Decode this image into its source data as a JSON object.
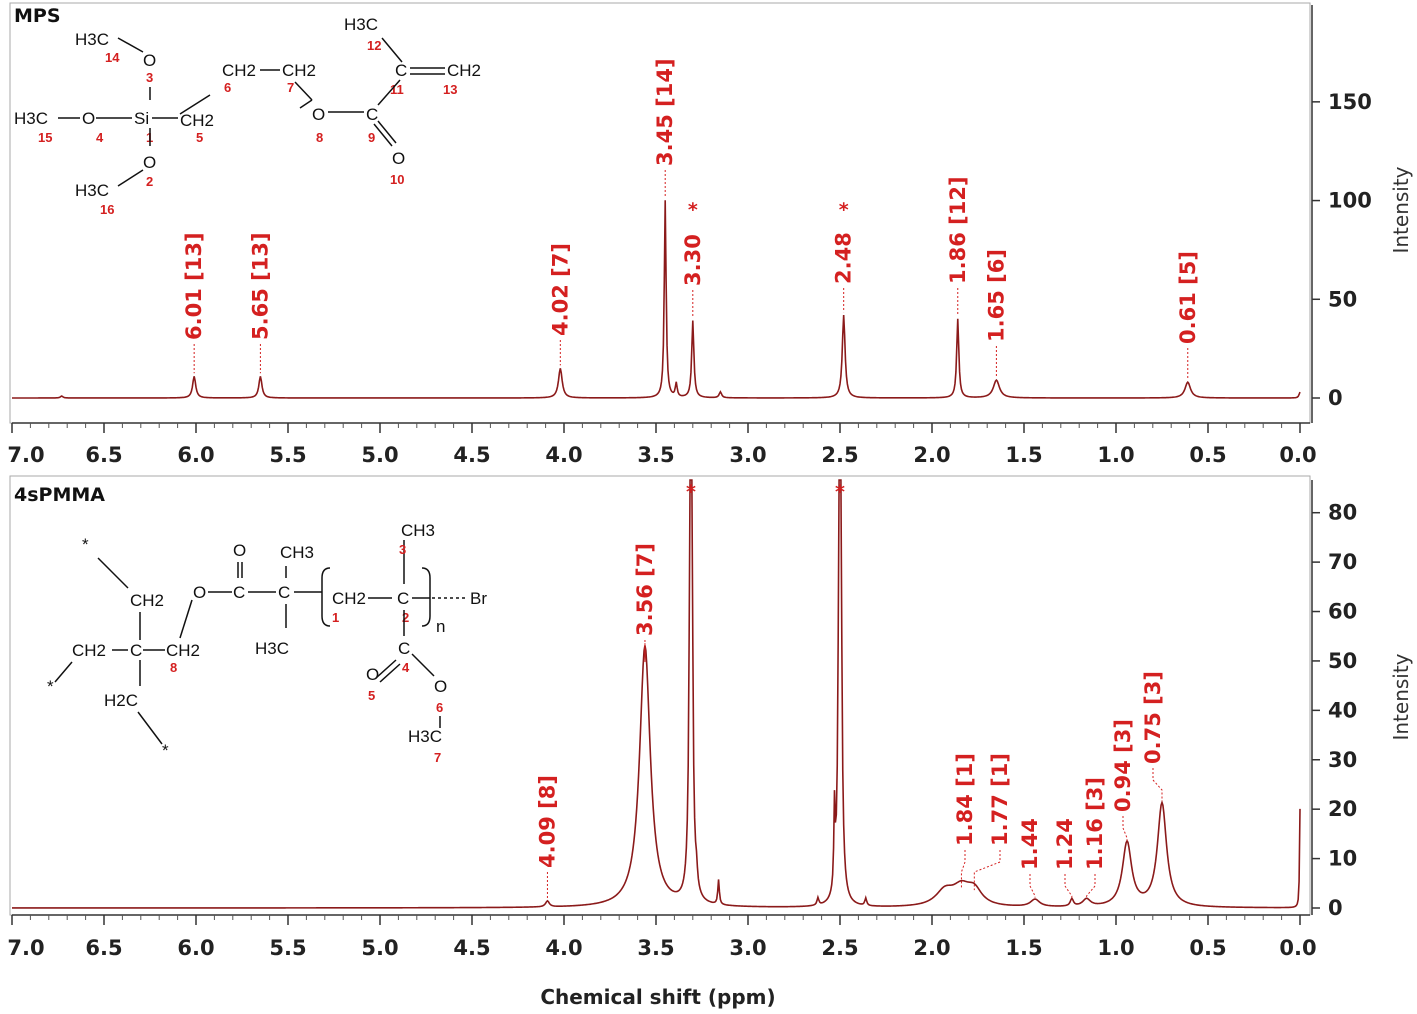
{
  "chart_data": [
    {
      "type": "line",
      "title": "MPS",
      "xlabel": "",
      "ylabel": "Intensity",
      "xlim": [
        7.0,
        0.0
      ],
      "ylim": [
        -5,
        195
      ],
      "x_ticks": [
        "7.0",
        "6.5",
        "6.0",
        "5.5",
        "5.0",
        "4.5",
        "4.0",
        "3.5",
        "3.0",
        "2.5",
        "2.0",
        "1.5",
        "1.0",
        "0.5",
        "0.0"
      ],
      "y_ticks": [
        0,
        50,
        100,
        150
      ],
      "peaks": [
        {
          "x": 6.01,
          "h": 11,
          "w": 0.01,
          "label": "6.01 [13]"
        },
        {
          "x": 5.65,
          "h": 11,
          "w": 0.01,
          "label": "5.65 [13]"
        },
        {
          "x": 4.02,
          "h": 15,
          "w": 0.012,
          "label": "4.02 [7]"
        },
        {
          "x": 3.45,
          "h": 100,
          "w": 0.006,
          "label": "3.45 [14]"
        },
        {
          "x": 3.3,
          "h": 39,
          "w": 0.007,
          "label": "3.30",
          "star": true
        },
        {
          "x": 2.48,
          "h": 42,
          "w": 0.009,
          "label": "2.48",
          "star": true
        },
        {
          "x": 1.86,
          "h": 40,
          "w": 0.007,
          "label": "1.86 [12]"
        },
        {
          "x": 1.65,
          "h": 9,
          "w": 0.02,
          "label": "1.65 [6]"
        },
        {
          "x": 0.61,
          "h": 8,
          "w": 0.018,
          "label": "0.61 [5]"
        },
        {
          "x": 3.39,
          "h": 7,
          "w": 0.006
        },
        {
          "x": 3.15,
          "h": 3,
          "w": 0.008
        },
        {
          "x": 0.0,
          "h": 3,
          "w": 0.006
        },
        {
          "x": 6.73,
          "h": 1,
          "w": 0.008
        }
      ]
    },
    {
      "type": "line",
      "title": "4sPMMA",
      "xlabel": "Chemical shift (ppm)",
      "ylabel": "Intensity",
      "xlim": [
        7.0,
        0.0
      ],
      "ylim": [
        -1,
        85
      ],
      "x_ticks": [
        "7.0",
        "6.5",
        "6.0",
        "5.5",
        "5.0",
        "4.5",
        "4.0",
        "3.5",
        "3.0",
        "2.5",
        "2.0",
        "1.5",
        "1.0",
        "0.5",
        "0.0"
      ],
      "y_ticks": [
        0,
        10,
        20,
        30,
        40,
        50,
        60,
        70,
        80
      ],
      "peaks": [
        {
          "x": 4.09,
          "h": 1.2,
          "w": 0.012,
          "label": "4.09 [8]"
        },
        {
          "x": 3.56,
          "h": 53,
          "w": 0.035,
          "label": "3.56 [7]"
        },
        {
          "x": 3.31,
          "h": 200,
          "w": 0.006,
          "label": "",
          "star": true
        },
        {
          "x": 2.5,
          "h": 200,
          "w": 0.006,
          "label": "",
          "star": true
        },
        {
          "x": 1.84,
          "h": 3.5,
          "w": 0.06,
          "label": "1.84 [1]"
        },
        {
          "x": 1.77,
          "h": 3.0,
          "w": 0.05,
          "label": "1.77 [1]"
        },
        {
          "x": 1.44,
          "h": 1.5,
          "w": 0.03,
          "label": "1.44"
        },
        {
          "x": 1.24,
          "h": 1.5,
          "w": 0.01,
          "label": "1.24"
        },
        {
          "x": 1.16,
          "h": 1.5,
          "w": 0.025,
          "label": "1.16 [3]"
        },
        {
          "x": 0.94,
          "h": 13,
          "w": 0.03,
          "label": "0.94 [3]"
        },
        {
          "x": 0.75,
          "h": 21,
          "w": 0.03,
          "label": "0.75 [3]"
        },
        {
          "x": 1.93,
          "h": 3.0,
          "w": 0.06
        },
        {
          "x": 2.53,
          "h": 16,
          "w": 0.004
        },
        {
          "x": 3.16,
          "h": 5,
          "w": 0.005
        },
        {
          "x": 3.28,
          "h": 3,
          "w": 0.006
        },
        {
          "x": 2.62,
          "h": 1.5,
          "w": 0.006
        },
        {
          "x": 2.36,
          "h": 1.5,
          "w": 0.006
        },
        {
          "x": 0.0,
          "h": 20,
          "w": 0.003
        }
      ]
    }
  ],
  "molecules": {
    "mps": {
      "atoms": [
        "H3C",
        "O",
        "CH2",
        "CH2",
        "H3C",
        "CH2",
        "H3C",
        "O",
        "Si",
        "CH2",
        "O",
        "C",
        "C",
        "O",
        "H3C",
        "O",
        "O"
      ],
      "numbers": [
        "14",
        "3",
        "6",
        "7",
        "12",
        "11",
        "13",
        "15",
        "4",
        "1",
        "5",
        "8",
        "9",
        "2",
        "10",
        "16"
      ]
    },
    "pmma": {
      "atoms": [
        "O",
        "C",
        "C",
        "CH3",
        "CH3",
        "CH2",
        "CH2",
        "CH2",
        "C",
        "CH2",
        "CH2",
        "C",
        "H3C",
        "C",
        "Br",
        "n",
        "O",
        "C",
        "O",
        "H2C",
        "H3C"
      ],
      "numbers": [
        "3",
        "1",
        "2",
        "8",
        "4",
        "5",
        "6",
        "7"
      ],
      "stars": [
        "*",
        "*",
        "*"
      ]
    }
  },
  "colors": {
    "trace": "#8b1a1a",
    "label": "#d42020"
  }
}
